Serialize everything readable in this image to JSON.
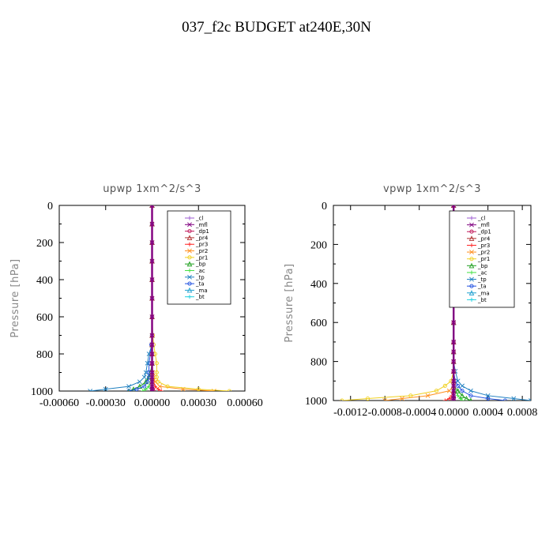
{
  "figure_title": "037_f2c  BUDGET at240E,30N",
  "legend_labels": [
    "_cl",
    "_mfl",
    "_dp1",
    "_pr4",
    "_pr3",
    "_pr2",
    "_pr1",
    "_bp",
    "_ac",
    "_tp",
    "_ta",
    "_ma",
    "_bt"
  ],
  "series_colors": {
    "_cl": "#9b59d0",
    "_mfl": "#800080",
    "_dp1": "#c0185a",
    "_pr4": "#b03030",
    "_pr3": "#ff2020",
    "_pr2": "#ff9020",
    "_pr1": "#f0d020",
    "_bp": "#20a020",
    "_ac": "#40e040",
    "_tp": "#2080c0",
    "_ta": "#2050e0",
    "_ma": "#20a0d0",
    "_bt": "#20d0e0"
  },
  "chart_data": [
    {
      "type": "line",
      "title": "upwp   1xm^2/s^3",
      "xlabel": "",
      "ylabel": "Pressure [hPa]",
      "xlim": [
        -0.0006,
        0.0006
      ],
      "ylim": [
        1000,
        0
      ],
      "x_tick_labels": [
        "-0.00060",
        "-0.00030",
        "0.00000",
        "0.00030",
        "0.00060"
      ],
      "x_ticks": [
        -0.0006,
        -0.0003,
        0,
        0.0003,
        0.0006
      ],
      "y_tick_labels": [
        "0",
        "200",
        "400",
        "600",
        "800",
        "1000"
      ],
      "y_ticks": [
        0,
        200,
        400,
        600,
        800,
        1000
      ],
      "legend_position": "top-right",
      "grid": false,
      "y": [
        0,
        100,
        200,
        300,
        400,
        500,
        600,
        700,
        750,
        800,
        850,
        900,
        925,
        950,
        975,
        990,
        1000
      ],
      "series": [
        {
          "name": "_cl",
          "values": [
            0,
            0,
            0,
            0,
            0,
            0,
            0,
            0,
            0,
            0,
            0,
            0,
            0,
            0,
            0,
            0,
            0
          ]
        },
        {
          "name": "_mfl",
          "values": [
            0,
            0,
            0,
            0,
            0,
            0,
            0,
            0,
            0,
            0,
            0,
            0,
            0,
            0,
            0,
            0,
            0
          ]
        },
        {
          "name": "_dp1",
          "values": [
            0,
            0,
            0,
            0,
            0,
            0,
            0,
            0,
            0,
            0,
            0,
            0,
            0,
            0,
            0,
            5e-06,
            1e-05
          ]
        },
        {
          "name": "_pr4",
          "values": [
            0,
            0,
            0,
            0,
            0,
            0,
            0,
            0,
            0,
            0,
            0,
            0,
            0,
            0,
            0,
            0,
            0
          ]
        },
        {
          "name": "_pr3",
          "values": [
            0,
            0,
            0,
            0,
            0,
            0,
            0,
            0,
            0,
            0,
            0,
            0,
            0,
            1e-05,
            2e-05,
            4e-05,
            6e-05
          ]
        },
        {
          "name": "_pr2",
          "values": [
            0,
            0,
            0,
            0,
            0,
            0,
            0,
            0,
            0,
            0,
            0,
            5e-06,
            1e-05,
            2e-05,
            5e-05,
            0.0002,
            0.0004
          ]
        },
        {
          "name": "_pr1",
          "values": [
            0,
            0,
            0,
            0,
            0,
            0,
            0,
            5e-06,
            1e-05,
            2e-05,
            3e-05,
            3e-05,
            3e-05,
            4e-05,
            0.0001,
            0.0003,
            0.0005
          ]
        },
        {
          "name": "_bp",
          "values": [
            0,
            0,
            0,
            0,
            0,
            0,
            0,
            0,
            0,
            0,
            0,
            -1e-05,
            -2e-05,
            -4e-05,
            -8e-05,
            -0.00012,
            -0.00015
          ]
        },
        {
          "name": "_ac",
          "values": [
            0,
            0,
            0,
            0,
            0,
            0,
            0,
            0,
            0,
            0,
            0,
            0,
            0,
            -1e-05,
            -2e-05,
            -4e-05,
            -6e-05
          ]
        },
        {
          "name": "_tp",
          "values": [
            0,
            0,
            0,
            0,
            0,
            0,
            0,
            0,
            0,
            -2e-05,
            -3e-05,
            -4e-05,
            -5e-05,
            -8e-05,
            -0.00015,
            -0.0003,
            -0.0004
          ]
        },
        {
          "name": "_ta",
          "values": [
            0,
            0,
            0,
            0,
            0,
            0,
            0,
            0,
            -5e-06,
            -1e-05,
            -2e-05,
            -2e-05,
            -2e-05,
            -3e-05,
            -5e-05,
            -0.0001,
            -0.00015
          ]
        },
        {
          "name": "_ma",
          "values": [
            0,
            0,
            0,
            0,
            0,
            0,
            0,
            0,
            0,
            0,
            0,
            0,
            0,
            0,
            0,
            0,
            0
          ]
        },
        {
          "name": "_bt",
          "values": [
            0,
            0,
            0,
            0,
            0,
            0,
            0,
            0,
            0,
            0,
            0,
            0,
            0,
            0,
            0,
            0,
            0
          ]
        }
      ]
    },
    {
      "type": "line",
      "title": "vpwp   1xm^2/s^3",
      "xlabel": "",
      "ylabel": "Pressure [hPa]",
      "xlim": [
        -0.0014,
        0.0009
      ],
      "ylim": [
        1000,
        0
      ],
      "x_tick_labels": [
        "-0.0012",
        "-0.0008",
        "-0.0004",
        "0.0000",
        "0.0004",
        "0.0008"
      ],
      "x_ticks": [
        -0.0012,
        -0.0008,
        -0.0004,
        0,
        0.0004,
        0.0008
      ],
      "y_tick_labels": [
        "0",
        "200",
        "400",
        "600",
        "800",
        "1000"
      ],
      "y_ticks": [
        0,
        200,
        400,
        600,
        800,
        1000
      ],
      "legend_position": "top-right",
      "grid": false,
      "y": [
        0,
        100,
        200,
        300,
        400,
        500,
        600,
        700,
        750,
        800,
        850,
        900,
        925,
        950,
        975,
        990,
        1000
      ],
      "series": [
        {
          "name": "_cl",
          "values": [
            0,
            0,
            0,
            0,
            0,
            0,
            0,
            0,
            0,
            0,
            0,
            0,
            0,
            0,
            0,
            0,
            0
          ]
        },
        {
          "name": "_mfl",
          "values": [
            0,
            0,
            0,
            0,
            0,
            0,
            0,
            0,
            0,
            0,
            0,
            0,
            0,
            0,
            0,
            0,
            0
          ]
        },
        {
          "name": "_dp1",
          "values": [
            0,
            0,
            0,
            0,
            0,
            0,
            0,
            0,
            0,
            0,
            0,
            0,
            0,
            0,
            0,
            0,
            -2e-05
          ]
        },
        {
          "name": "_pr4",
          "values": [
            0,
            0,
            0,
            0,
            0,
            0,
            0,
            0,
            0,
            0,
            0,
            0,
            0,
            0,
            0,
            0,
            0
          ]
        },
        {
          "name": "_pr3",
          "values": [
            0,
            0,
            0,
            0,
            0,
            0,
            0,
            0,
            0,
            0,
            0,
            0,
            0,
            0,
            -2e-05,
            -5e-05,
            -0.0001
          ]
        },
        {
          "name": "_pr2",
          "values": [
            0,
            0,
            0,
            0,
            0,
            0,
            0,
            0,
            0,
            0,
            0,
            0,
            0,
            -5e-05,
            -0.0003,
            -0.0006,
            -0.0008
          ]
        },
        {
          "name": "_pr1",
          "values": [
            0,
            0,
            0,
            0,
            0,
            0,
            0,
            0,
            0,
            0,
            0,
            -3e-05,
            -0.0001,
            -0.0002,
            -0.0005,
            -0.001,
            -0.0013
          ]
        },
        {
          "name": "_bp",
          "values": [
            0,
            0,
            0,
            0,
            0,
            0,
            0,
            0,
            0,
            0,
            0,
            0,
            0,
            5e-05,
            0.0001,
            0.00015,
            0.0002
          ]
        },
        {
          "name": "_ac",
          "values": [
            0,
            0,
            0,
            0,
            0,
            0,
            0,
            0,
            0,
            0,
            0,
            0,
            0,
            2e-05,
            5e-05,
            8e-05,
            0.0001
          ]
        },
        {
          "name": "_tp",
          "values": [
            0,
            0,
            0,
            0,
            0,
            0,
            0,
            0,
            0,
            0,
            2e-05,
            5e-05,
            0.0001,
            0.0002,
            0.0004,
            0.0007,
            0.0009
          ]
        },
        {
          "name": "_ta",
          "values": [
            0,
            0,
            0,
            0,
            0,
            0,
            0,
            0,
            0,
            0,
            0,
            2e-05,
            5e-05,
            0.0001,
            0.0002,
            0.0004,
            0.0006
          ]
        },
        {
          "name": "_ma",
          "values": [
            0,
            0,
            0,
            0,
            0,
            0,
            0,
            0,
            0,
            0,
            0,
            0,
            0,
            0,
            0,
            0,
            0
          ]
        },
        {
          "name": "_bt",
          "values": [
            0,
            0,
            0,
            0,
            0,
            0,
            0,
            0,
            0,
            0,
            0,
            0,
            0,
            0,
            0,
            0,
            0
          ]
        }
      ]
    }
  ]
}
